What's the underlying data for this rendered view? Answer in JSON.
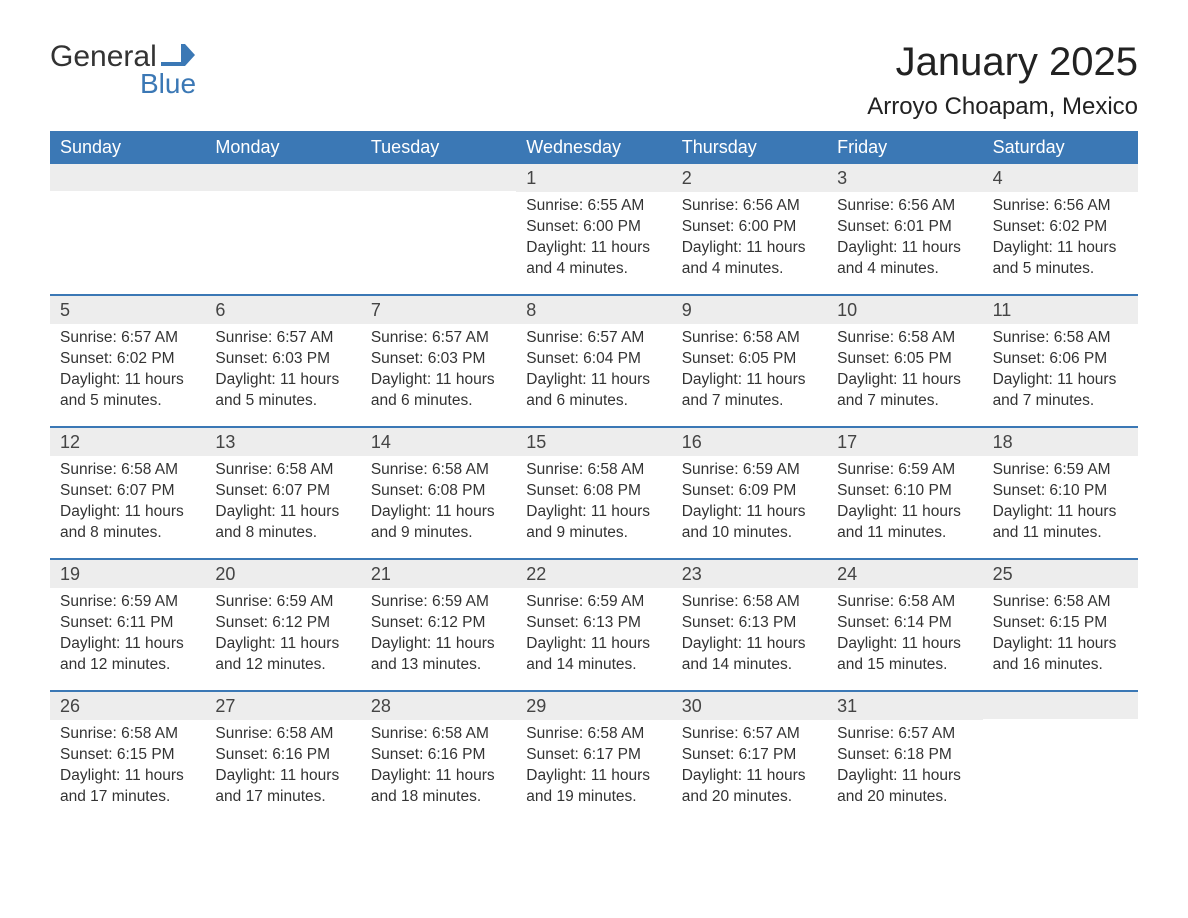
{
  "brand": {
    "part1": "General",
    "part2": "Blue",
    "flag_color": "#3b78b5",
    "text_dark": "#333333"
  },
  "title": "January 2025",
  "location": "Arroyo Choapam, Mexico",
  "colors": {
    "header_bg": "#3b78b5",
    "header_text": "#ffffff",
    "daynum_bg": "#ededed",
    "row_divider": "#3b78b5",
    "body_text": "#333333",
    "page_bg": "#ffffff"
  },
  "layout": {
    "columns": 7,
    "font_family": "Arial"
  },
  "day_names": [
    "Sunday",
    "Monday",
    "Tuesday",
    "Wednesday",
    "Thursday",
    "Friday",
    "Saturday"
  ],
  "weeks": [
    [
      {
        "day": "",
        "sunrise": "",
        "sunset": "",
        "daylight": ""
      },
      {
        "day": "",
        "sunrise": "",
        "sunset": "",
        "daylight": ""
      },
      {
        "day": "",
        "sunrise": "",
        "sunset": "",
        "daylight": ""
      },
      {
        "day": "1",
        "sunrise": "Sunrise: 6:55 AM",
        "sunset": "Sunset: 6:00 PM",
        "daylight": "Daylight: 11 hours and 4 minutes."
      },
      {
        "day": "2",
        "sunrise": "Sunrise: 6:56 AM",
        "sunset": "Sunset: 6:00 PM",
        "daylight": "Daylight: 11 hours and 4 minutes."
      },
      {
        "day": "3",
        "sunrise": "Sunrise: 6:56 AM",
        "sunset": "Sunset: 6:01 PM",
        "daylight": "Daylight: 11 hours and 4 minutes."
      },
      {
        "day": "4",
        "sunrise": "Sunrise: 6:56 AM",
        "sunset": "Sunset: 6:02 PM",
        "daylight": "Daylight: 11 hours and 5 minutes."
      }
    ],
    [
      {
        "day": "5",
        "sunrise": "Sunrise: 6:57 AM",
        "sunset": "Sunset: 6:02 PM",
        "daylight": "Daylight: 11 hours and 5 minutes."
      },
      {
        "day": "6",
        "sunrise": "Sunrise: 6:57 AM",
        "sunset": "Sunset: 6:03 PM",
        "daylight": "Daylight: 11 hours and 5 minutes."
      },
      {
        "day": "7",
        "sunrise": "Sunrise: 6:57 AM",
        "sunset": "Sunset: 6:03 PM",
        "daylight": "Daylight: 11 hours and 6 minutes."
      },
      {
        "day": "8",
        "sunrise": "Sunrise: 6:57 AM",
        "sunset": "Sunset: 6:04 PM",
        "daylight": "Daylight: 11 hours and 6 minutes."
      },
      {
        "day": "9",
        "sunrise": "Sunrise: 6:58 AM",
        "sunset": "Sunset: 6:05 PM",
        "daylight": "Daylight: 11 hours and 7 minutes."
      },
      {
        "day": "10",
        "sunrise": "Sunrise: 6:58 AM",
        "sunset": "Sunset: 6:05 PM",
        "daylight": "Daylight: 11 hours and 7 minutes."
      },
      {
        "day": "11",
        "sunrise": "Sunrise: 6:58 AM",
        "sunset": "Sunset: 6:06 PM",
        "daylight": "Daylight: 11 hours and 7 minutes."
      }
    ],
    [
      {
        "day": "12",
        "sunrise": "Sunrise: 6:58 AM",
        "sunset": "Sunset: 6:07 PM",
        "daylight": "Daylight: 11 hours and 8 minutes."
      },
      {
        "day": "13",
        "sunrise": "Sunrise: 6:58 AM",
        "sunset": "Sunset: 6:07 PM",
        "daylight": "Daylight: 11 hours and 8 minutes."
      },
      {
        "day": "14",
        "sunrise": "Sunrise: 6:58 AM",
        "sunset": "Sunset: 6:08 PM",
        "daylight": "Daylight: 11 hours and 9 minutes."
      },
      {
        "day": "15",
        "sunrise": "Sunrise: 6:58 AM",
        "sunset": "Sunset: 6:08 PM",
        "daylight": "Daylight: 11 hours and 9 minutes."
      },
      {
        "day": "16",
        "sunrise": "Sunrise: 6:59 AM",
        "sunset": "Sunset: 6:09 PM",
        "daylight": "Daylight: 11 hours and 10 minutes."
      },
      {
        "day": "17",
        "sunrise": "Sunrise: 6:59 AM",
        "sunset": "Sunset: 6:10 PM",
        "daylight": "Daylight: 11 hours and 11 minutes."
      },
      {
        "day": "18",
        "sunrise": "Sunrise: 6:59 AM",
        "sunset": "Sunset: 6:10 PM",
        "daylight": "Daylight: 11 hours and 11 minutes."
      }
    ],
    [
      {
        "day": "19",
        "sunrise": "Sunrise: 6:59 AM",
        "sunset": "Sunset: 6:11 PM",
        "daylight": "Daylight: 11 hours and 12 minutes."
      },
      {
        "day": "20",
        "sunrise": "Sunrise: 6:59 AM",
        "sunset": "Sunset: 6:12 PM",
        "daylight": "Daylight: 11 hours and 12 minutes."
      },
      {
        "day": "21",
        "sunrise": "Sunrise: 6:59 AM",
        "sunset": "Sunset: 6:12 PM",
        "daylight": "Daylight: 11 hours and 13 minutes."
      },
      {
        "day": "22",
        "sunrise": "Sunrise: 6:59 AM",
        "sunset": "Sunset: 6:13 PM",
        "daylight": "Daylight: 11 hours and 14 minutes."
      },
      {
        "day": "23",
        "sunrise": "Sunrise: 6:58 AM",
        "sunset": "Sunset: 6:13 PM",
        "daylight": "Daylight: 11 hours and 14 minutes."
      },
      {
        "day": "24",
        "sunrise": "Sunrise: 6:58 AM",
        "sunset": "Sunset: 6:14 PM",
        "daylight": "Daylight: 11 hours and 15 minutes."
      },
      {
        "day": "25",
        "sunrise": "Sunrise: 6:58 AM",
        "sunset": "Sunset: 6:15 PM",
        "daylight": "Daylight: 11 hours and 16 minutes."
      }
    ],
    [
      {
        "day": "26",
        "sunrise": "Sunrise: 6:58 AM",
        "sunset": "Sunset: 6:15 PM",
        "daylight": "Daylight: 11 hours and 17 minutes."
      },
      {
        "day": "27",
        "sunrise": "Sunrise: 6:58 AM",
        "sunset": "Sunset: 6:16 PM",
        "daylight": "Daylight: 11 hours and 17 minutes."
      },
      {
        "day": "28",
        "sunrise": "Sunrise: 6:58 AM",
        "sunset": "Sunset: 6:16 PM",
        "daylight": "Daylight: 11 hours and 18 minutes."
      },
      {
        "day": "29",
        "sunrise": "Sunrise: 6:58 AM",
        "sunset": "Sunset: 6:17 PM",
        "daylight": "Daylight: 11 hours and 19 minutes."
      },
      {
        "day": "30",
        "sunrise": "Sunrise: 6:57 AM",
        "sunset": "Sunset: 6:17 PM",
        "daylight": "Daylight: 11 hours and 20 minutes."
      },
      {
        "day": "31",
        "sunrise": "Sunrise: 6:57 AM",
        "sunset": "Sunset: 6:18 PM",
        "daylight": "Daylight: 11 hours and 20 minutes."
      },
      {
        "day": "",
        "sunrise": "",
        "sunset": "",
        "daylight": ""
      }
    ]
  ]
}
